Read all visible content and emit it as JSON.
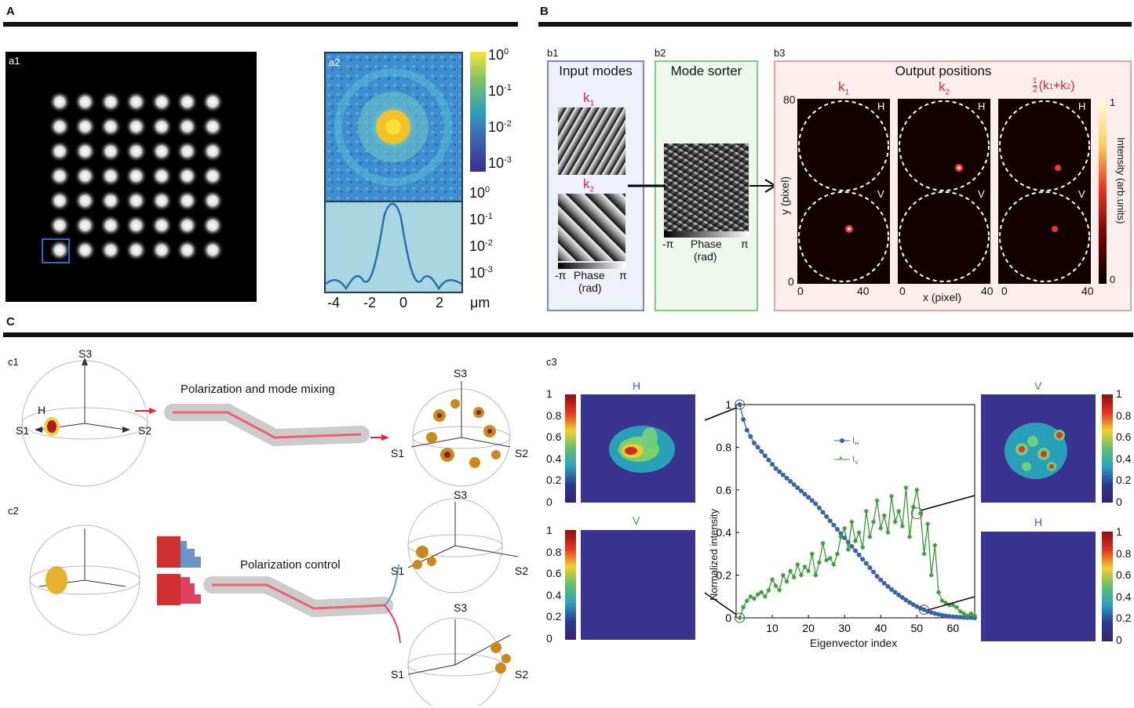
{
  "panels": {
    "A": "A",
    "B": "B",
    "C": "C"
  },
  "a1": {
    "label": "a1"
  },
  "a2": {
    "label": "a2",
    "colorbar_ticks": [
      "10",
      "10",
      "10",
      "10"
    ],
    "colorbar_exps": [
      "0",
      "-1",
      "-2",
      "-3"
    ],
    "profile_yticks": [
      "10",
      "10",
      "10",
      "10"
    ],
    "profile_exps": [
      "0",
      "-1",
      "-2",
      "-3"
    ],
    "xticks": [
      "-4",
      "-2",
      "0",
      "2"
    ],
    "xunit": "μm"
  },
  "b1": {
    "label": "b1",
    "title": "Input modes",
    "k1": "k",
    "k1sub": "1",
    "k2": "k",
    "k2sub": "2",
    "phase_left": "-π",
    "phase_mid": "Phase",
    "phase_right": "π",
    "phase_unit": "(rad)"
  },
  "b2": {
    "label": "b2",
    "title": "Mode sorter",
    "phase_left": "-π",
    "phase_mid": "Phase",
    "phase_right": "π",
    "phase_unit": "(rad)"
  },
  "b3": {
    "label": "b3",
    "title": "Output positions",
    "col1": "k",
    "col1sub": "1",
    "col2": "k",
    "col2sub": "2",
    "col3_pre": "(k",
    "col3_mid": "+k",
    "col3_post": ")",
    "col3_frac_num": "1",
    "col3_frac_den": "2",
    "H": "H",
    "V": "V",
    "ymax": "80",
    "ymin": "0",
    "xmin": "0",
    "xmax": "40",
    "ylabel": "y (pixel)",
    "xlabel": "x (pixel)",
    "cb_top": "1",
    "cb_bottom": "0",
    "cb_label": "Intensity (arb.units)"
  },
  "c1": {
    "label": "c1",
    "mixing": "Polarization and mode mixing",
    "S1": "S1",
    "S2": "S2",
    "S3": "S3",
    "H": "H"
  },
  "c2": {
    "label": "c2",
    "control": "Polarization control",
    "S1": "S1",
    "S2": "S2",
    "S3": "S3"
  },
  "c3": {
    "label": "c3",
    "H": "H",
    "V": "V",
    "cb_ticks": [
      "1",
      "0.8",
      "0.6",
      "0.4",
      "0.2",
      "0"
    ],
    "ylabel": "Normalized intensity",
    "xlabel": "Eigenvector index",
    "legend_IH": "I",
    "legend_IH_sub": "H",
    "legend_IV": "I",
    "legend_IV_sub": "V"
  },
  "colors": {
    "blue": "#3b63a8",
    "green": "#3a9a3a",
    "red": "#e3262f",
    "b1_border": "#7b87c9",
    "b2_border": "#86c986",
    "b3_border": "#f0a0a0"
  },
  "chart_data": {
    "type": "line",
    "xlabel": "Eigenvector index",
    "ylabel": "Normalized intensity",
    "xlim": [
      0,
      66
    ],
    "ylim": [
      0,
      1
    ],
    "xticks": [
      10,
      20,
      30,
      40,
      50,
      60
    ],
    "yticks": [
      0,
      0.2,
      0.4,
      0.6,
      0.8,
      1
    ],
    "series": [
      {
        "name": "IH",
        "color": "#3b63a8",
        "x": [
          1,
          2,
          3,
          4,
          5,
          6,
          7,
          8,
          9,
          10,
          11,
          12,
          13,
          14,
          15,
          16,
          17,
          18,
          19,
          20,
          21,
          22,
          23,
          24,
          25,
          26,
          27,
          28,
          29,
          30,
          31,
          32,
          33,
          34,
          35,
          36,
          37,
          38,
          39,
          40,
          41,
          42,
          43,
          44,
          45,
          46,
          47,
          48,
          49,
          50,
          51,
          52,
          53,
          54,
          55,
          56,
          57,
          58,
          59,
          60,
          61,
          62,
          63,
          64,
          65,
          66
        ],
        "values": [
          1.0,
          0.93,
          0.88,
          0.85,
          0.82,
          0.8,
          0.78,
          0.76,
          0.74,
          0.72,
          0.7,
          0.685,
          0.67,
          0.655,
          0.64,
          0.625,
          0.61,
          0.595,
          0.58,
          0.565,
          0.55,
          0.535,
          0.515,
          0.495,
          0.475,
          0.455,
          0.435,
          0.415,
          0.395,
          0.375,
          0.355,
          0.335,
          0.315,
          0.295,
          0.275,
          0.255,
          0.235,
          0.215,
          0.195,
          0.178,
          0.162,
          0.147,
          0.133,
          0.12,
          0.107,
          0.095,
          0.083,
          0.072,
          0.062,
          0.053,
          0.045,
          0.038,
          0.031,
          0.025,
          0.02,
          0.016,
          0.012,
          0.009,
          0.007,
          0.005,
          0.004,
          0.003,
          0.002,
          0.001,
          0.001,
          0.0
        ]
      },
      {
        "name": "IV",
        "color": "#3a9a3a",
        "x": [
          1,
          2,
          3,
          4,
          5,
          6,
          7,
          8,
          9,
          10,
          11,
          12,
          13,
          14,
          15,
          16,
          17,
          18,
          19,
          20,
          21,
          22,
          23,
          24,
          25,
          26,
          27,
          28,
          29,
          30,
          31,
          32,
          33,
          34,
          35,
          36,
          37,
          38,
          39,
          40,
          41,
          42,
          43,
          44,
          45,
          46,
          47,
          48,
          49,
          50,
          51,
          52,
          53,
          54,
          55,
          56,
          57,
          58,
          59,
          60,
          61,
          62,
          63,
          64,
          65,
          66
        ],
        "values": [
          0.0,
          0.05,
          0.08,
          0.1,
          0.09,
          0.11,
          0.12,
          0.1,
          0.13,
          0.18,
          0.15,
          0.13,
          0.2,
          0.17,
          0.22,
          0.19,
          0.25,
          0.2,
          0.24,
          0.22,
          0.3,
          0.2,
          0.26,
          0.35,
          0.27,
          0.28,
          0.25,
          0.3,
          0.38,
          0.42,
          0.32,
          0.45,
          0.36,
          0.4,
          0.33,
          0.5,
          0.38,
          0.45,
          0.55,
          0.42,
          0.48,
          0.4,
          0.57,
          0.45,
          0.5,
          0.43,
          0.61,
          0.38,
          0.52,
          0.6,
          0.49,
          0.3,
          0.44,
          0.2,
          0.34,
          0.12,
          0.08,
          0.07,
          0.06,
          0.06,
          0.05,
          0.03,
          0.02,
          0.01,
          0.02,
          0.01
        ]
      }
    ]
  }
}
